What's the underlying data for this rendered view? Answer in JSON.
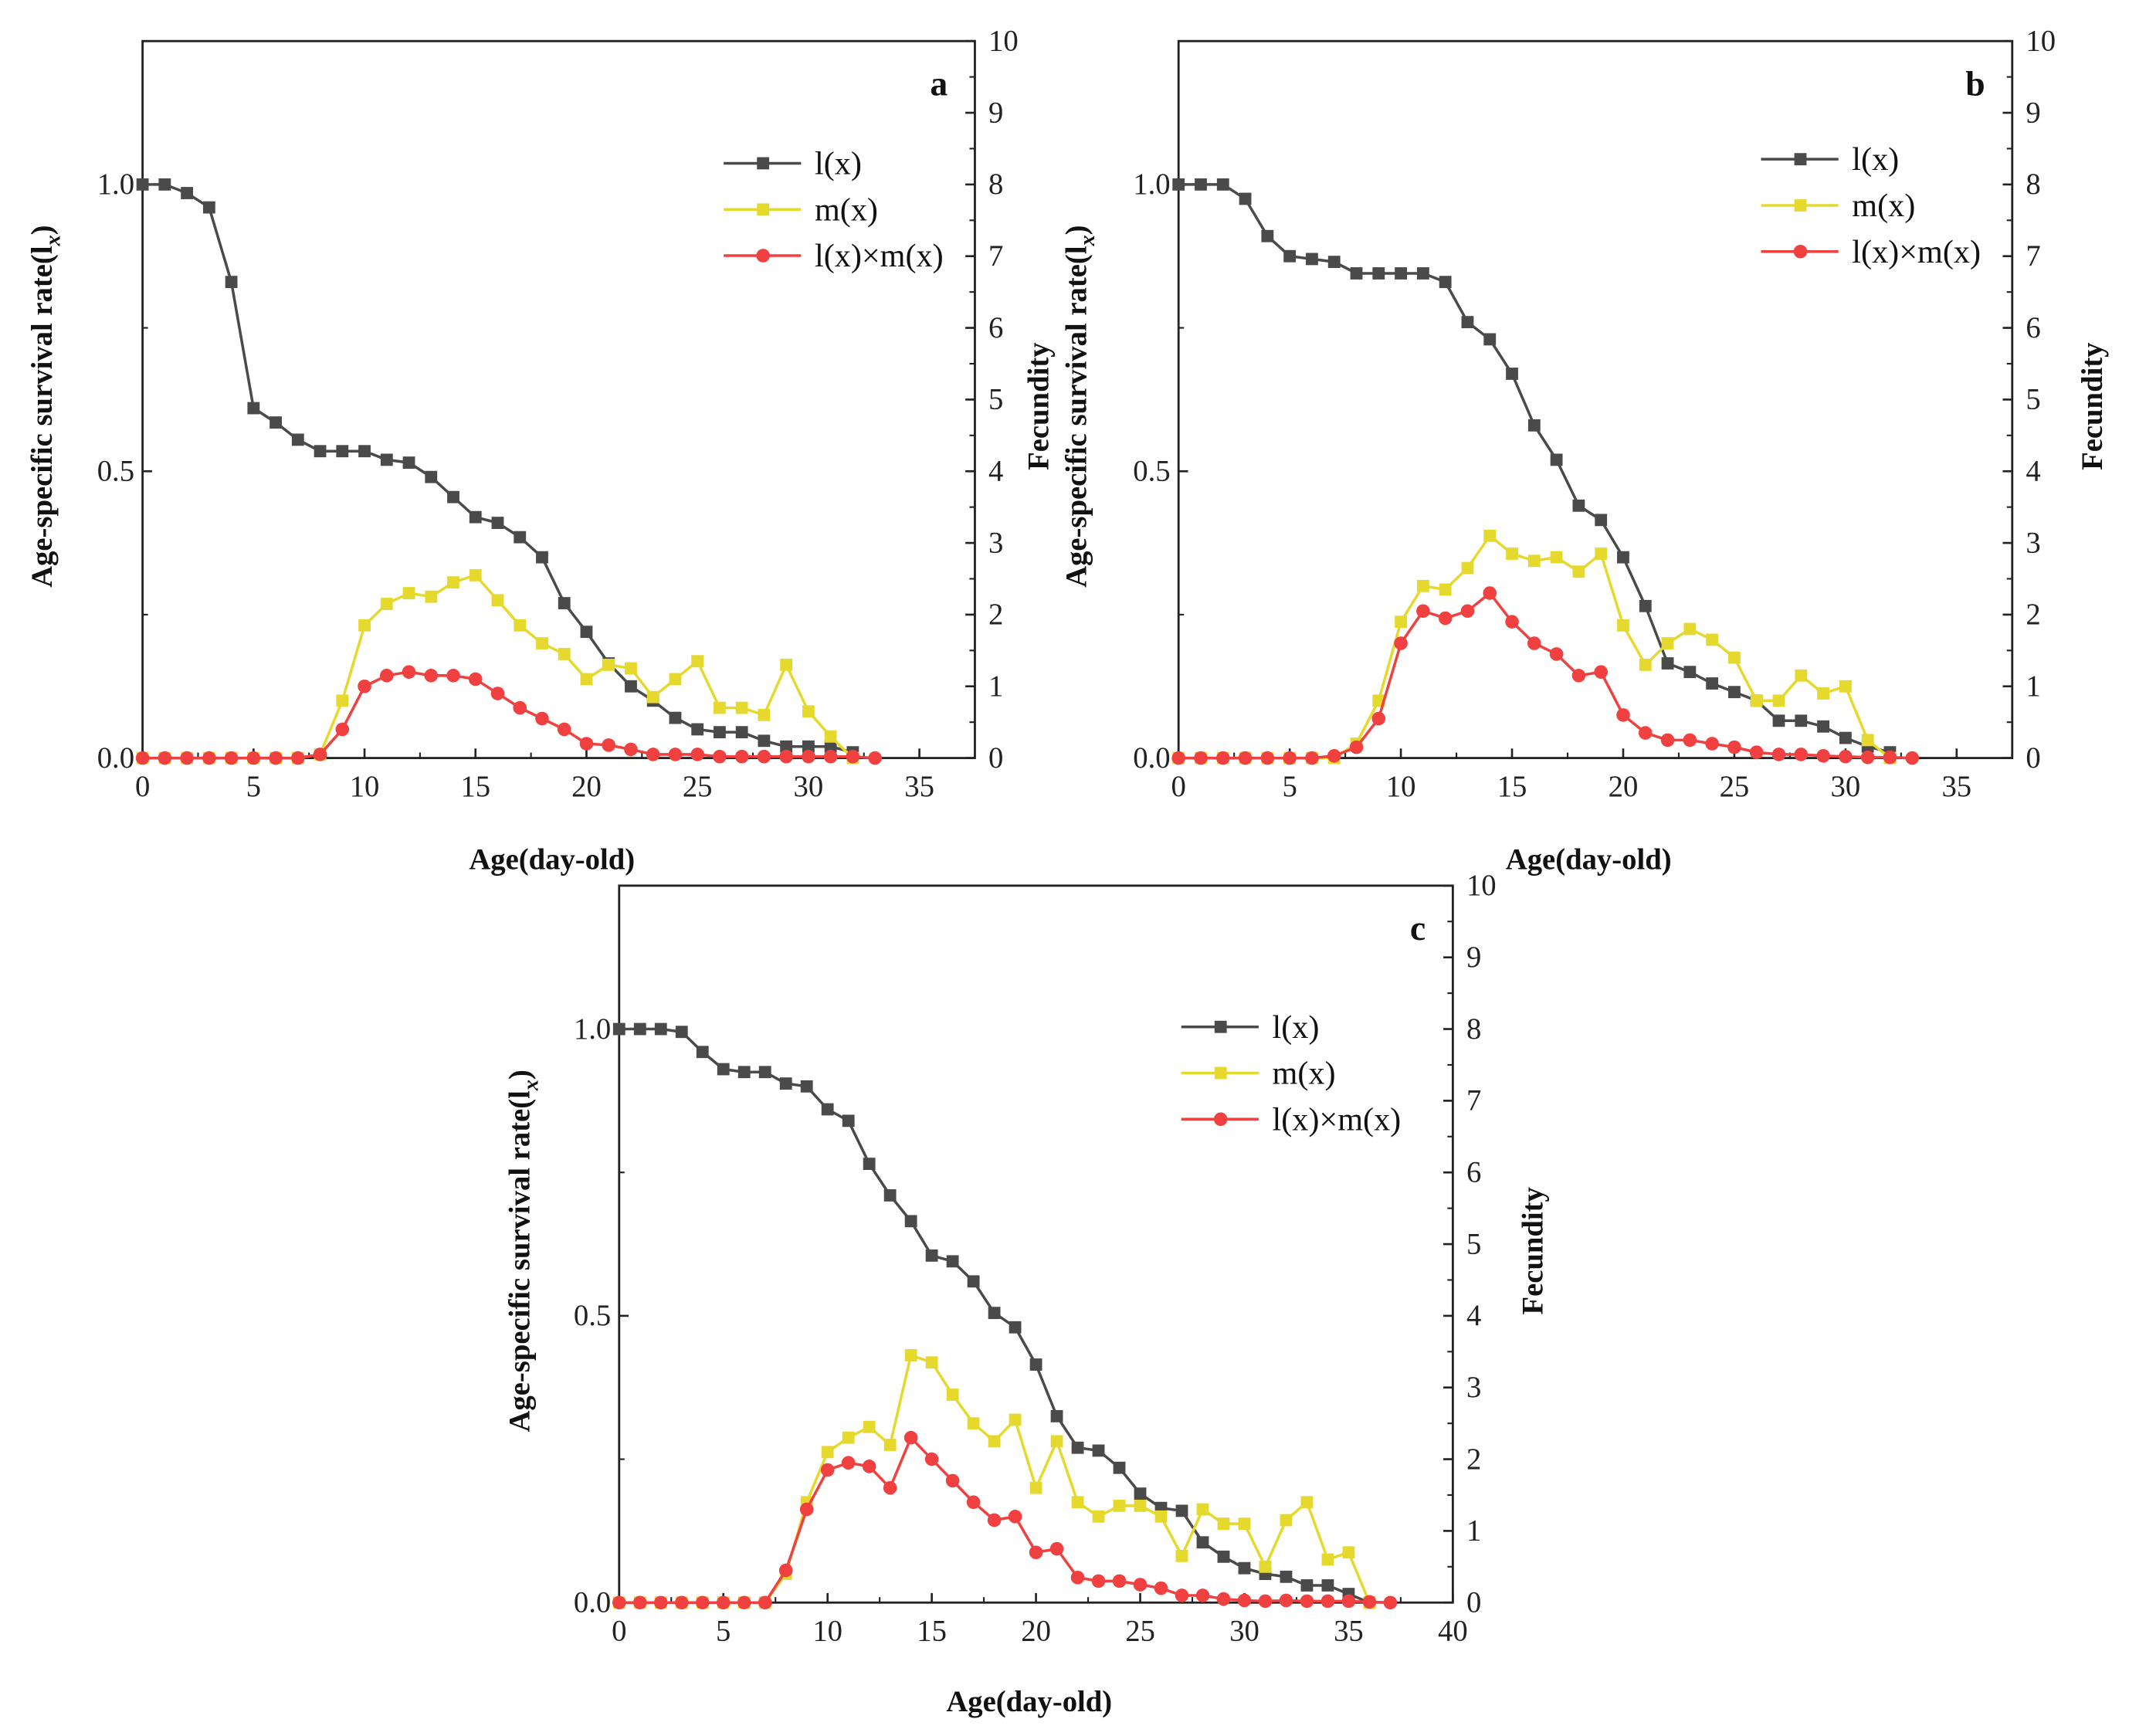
{
  "chart_data": [
    {
      "type": "line",
      "panel_label": "a",
      "xlabel": "Age(day-old)",
      "ylabel_left": "Age-specific survival rate(l",
      "ylabel_left_sub": "x",
      "ylabel_left_close": ")",
      "ylabel_right": "Fecundity",
      "xlim": [
        0,
        37.5
      ],
      "xticks": [
        0,
        5,
        10,
        15,
        20,
        25,
        30,
        35
      ],
      "ylim_left": [
        0,
        1.25
      ],
      "yticks_left": [
        "0.0",
        "0.5",
        "1.0"
      ],
      "ylim_right": [
        0,
        10
      ],
      "yticks_right": [
        0,
        1,
        2,
        3,
        4,
        5,
        6,
        7,
        8,
        9,
        10
      ],
      "legend": [
        "l(x)",
        "m(x)",
        "l(x)×m(x)"
      ],
      "legend_position": "top-right",
      "series": [
        {
          "name": "l(x)",
          "axis": "left",
          "color": "#4a4a4a",
          "marker": "square",
          "x": [
            0,
            1,
            2,
            3,
            4,
            5,
            6,
            7,
            8,
            9,
            10,
            11,
            12,
            13,
            14,
            15,
            16,
            17,
            18,
            19,
            20,
            21,
            22,
            23,
            24,
            25,
            26,
            27,
            28,
            29,
            30,
            31,
            32
          ],
          "values": [
            1.0,
            1.0,
            0.985,
            0.96,
            0.83,
            0.61,
            0.585,
            0.555,
            0.535,
            0.535,
            0.535,
            0.52,
            0.515,
            0.49,
            0.455,
            0.42,
            0.41,
            0.385,
            0.35,
            0.27,
            0.22,
            0.165,
            0.125,
            0.1,
            0.07,
            0.05,
            0.045,
            0.045,
            0.03,
            0.02,
            0.02,
            0.02,
            0.01
          ]
        },
        {
          "name": "m(x)",
          "axis": "right",
          "color": "#e6d92e",
          "marker": "square",
          "x": [
            0,
            1,
            2,
            3,
            4,
            5,
            6,
            7,
            8,
            9,
            10,
            11,
            12,
            13,
            14,
            15,
            16,
            17,
            18,
            19,
            20,
            21,
            22,
            23,
            24,
            25,
            26,
            27,
            28,
            29,
            30,
            31,
            32
          ],
          "values": [
            0,
            0,
            0,
            0,
            0,
            0,
            0,
            0,
            0.05,
            0.8,
            1.85,
            2.15,
            2.3,
            2.25,
            2.45,
            2.55,
            2.2,
            1.85,
            1.6,
            1.45,
            1.1,
            1.3,
            1.25,
            0.85,
            1.1,
            1.35,
            0.7,
            0.7,
            0.6,
            1.3,
            0.65,
            0.3,
            0
          ]
        },
        {
          "name": "l(x)×m(x)",
          "axis": "right",
          "color": "#f04040",
          "marker": "circle",
          "x": [
            0,
            1,
            2,
            3,
            4,
            5,
            6,
            7,
            8,
            9,
            10,
            11,
            12,
            13,
            14,
            15,
            16,
            17,
            18,
            19,
            20,
            21,
            22,
            23,
            24,
            25,
            26,
            27,
            28,
            29,
            30,
            31,
            32,
            33
          ],
          "values": [
            0,
            0,
            0,
            0,
            0,
            0,
            0,
            0,
            0.05,
            0.4,
            1.0,
            1.15,
            1.2,
            1.15,
            1.15,
            1.1,
            0.9,
            0.7,
            0.55,
            0.4,
            0.2,
            0.18,
            0.12,
            0.05,
            0.05,
            0.05,
            0.02,
            0.02,
            0.02,
            0.02,
            0.02,
            0.02,
            0.02,
            0
          ]
        }
      ]
    },
    {
      "type": "line",
      "panel_label": "b",
      "xlabel": "Age(day-old)",
      "ylabel_left": "Age-specific survival rate(l",
      "ylabel_left_sub": "x",
      "ylabel_left_close": ")",
      "ylabel_right": "Fecundity",
      "xlim": [
        0,
        37.5
      ],
      "xticks": [
        0,
        5,
        10,
        15,
        20,
        25,
        30,
        35
      ],
      "ylim_left": [
        0,
        1.25
      ],
      "yticks_left": [
        "0.0",
        "0.5",
        "1.0"
      ],
      "ylim_right": [
        0,
        10
      ],
      "yticks_right": [
        0,
        1,
        2,
        3,
        4,
        5,
        6,
        7,
        8,
        9,
        10
      ],
      "legend": [
        "l(x)",
        "m(x)",
        "l(x)×m(x)"
      ],
      "legend_position": "top-right",
      "series": [
        {
          "name": "l(x)",
          "axis": "left",
          "color": "#4a4a4a",
          "marker": "square",
          "x": [
            0,
            1,
            2,
            3,
            4,
            5,
            6,
            7,
            8,
            9,
            10,
            11,
            12,
            13,
            14,
            15,
            16,
            17,
            18,
            19,
            20,
            21,
            22,
            23,
            24,
            25,
            26,
            27,
            28,
            29,
            30,
            31,
            32
          ],
          "values": [
            1.0,
            1.0,
            1.0,
            0.975,
            0.91,
            0.875,
            0.87,
            0.865,
            0.845,
            0.845,
            0.845,
            0.845,
            0.83,
            0.76,
            0.73,
            0.67,
            0.58,
            0.52,
            0.44,
            0.415,
            0.35,
            0.265,
            0.165,
            0.15,
            0.13,
            0.115,
            0.1,
            0.065,
            0.065,
            0.055,
            0.035,
            0.02,
            0.01
          ]
        },
        {
          "name": "m(x)",
          "axis": "right",
          "color": "#e6d92e",
          "marker": "square",
          "x": [
            0,
            1,
            2,
            3,
            4,
            5,
            6,
            7,
            8,
            9,
            10,
            11,
            12,
            13,
            14,
            15,
            16,
            17,
            18,
            19,
            20,
            21,
            22,
            23,
            24,
            25,
            26,
            27,
            28,
            29,
            30,
            31,
            32
          ],
          "values": [
            0,
            0,
            0,
            0,
            0,
            0,
            0,
            0,
            0.2,
            0.8,
            1.9,
            2.4,
            2.35,
            2.65,
            3.1,
            2.85,
            2.75,
            2.8,
            2.6,
            2.85,
            1.85,
            1.3,
            1.6,
            1.8,
            1.65,
            1.4,
            0.8,
            0.8,
            1.15,
            0.9,
            1.0,
            0.25,
            0
          ]
        },
        {
          "name": "l(x)×m(x)",
          "axis": "right",
          "color": "#f04040",
          "marker": "circle",
          "x": [
            0,
            1,
            2,
            3,
            4,
            5,
            6,
            7,
            8,
            9,
            10,
            11,
            12,
            13,
            14,
            15,
            16,
            17,
            18,
            19,
            20,
            21,
            22,
            23,
            24,
            25,
            26,
            27,
            28,
            29,
            30,
            31,
            32,
            33
          ],
          "values": [
            0,
            0,
            0,
            0,
            0,
            0,
            0,
            0.03,
            0.15,
            0.55,
            1.6,
            2.05,
            1.95,
            2.05,
            2.3,
            1.9,
            1.6,
            1.45,
            1.15,
            1.2,
            0.6,
            0.35,
            0.25,
            0.25,
            0.2,
            0.15,
            0.08,
            0.05,
            0.05,
            0.03,
            0.02,
            0.01,
            0.01,
            0
          ]
        }
      ]
    },
    {
      "type": "line",
      "panel_label": "c",
      "xlabel": "Age(day-old)",
      "ylabel_left": "Age-specific survival rate(l",
      "ylabel_left_sub": "x",
      "ylabel_left_close": ")",
      "ylabel_right": "Fecundity",
      "xlim": [
        0,
        40
      ],
      "xticks": [
        0,
        5,
        10,
        15,
        20,
        25,
        30,
        35,
        40
      ],
      "ylim_left": [
        0,
        1.25
      ],
      "yticks_left": [
        "0.0",
        "0.5",
        "1.0"
      ],
      "ylim_right": [
        0,
        10
      ],
      "yticks_right": [
        0,
        1,
        2,
        3,
        4,
        5,
        6,
        7,
        8,
        9,
        10
      ],
      "legend": [
        "l(x)",
        "m(x)",
        "l(x)×m(x)"
      ],
      "legend_position": "top-right",
      "series": [
        {
          "name": "l(x)",
          "axis": "left",
          "color": "#4a4a4a",
          "marker": "square",
          "x": [
            0,
            1,
            2,
            3,
            4,
            5,
            6,
            7,
            8,
            9,
            10,
            11,
            12,
            13,
            14,
            15,
            16,
            17,
            18,
            19,
            20,
            21,
            22,
            23,
            24,
            25,
            26,
            27,
            28,
            29,
            30,
            31,
            32,
            33,
            34,
            35,
            36
          ],
          "values": [
            1.0,
            1.0,
            1.0,
            0.995,
            0.96,
            0.93,
            0.925,
            0.925,
            0.905,
            0.9,
            0.86,
            0.84,
            0.765,
            0.71,
            0.665,
            0.605,
            0.595,
            0.56,
            0.505,
            0.48,
            0.415,
            0.325,
            0.27,
            0.265,
            0.235,
            0.19,
            0.165,
            0.16,
            0.105,
            0.08,
            0.06,
            0.05,
            0.045,
            0.03,
            0.03,
            0.015,
            0
          ]
        },
        {
          "name": "m(x)",
          "axis": "right",
          "color": "#e6d92e",
          "marker": "square",
          "x": [
            0,
            1,
            2,
            3,
            4,
            5,
            6,
            7,
            8,
            9,
            10,
            11,
            12,
            13,
            14,
            15,
            16,
            17,
            18,
            19,
            20,
            21,
            22,
            23,
            24,
            25,
            26,
            27,
            28,
            29,
            30,
            31,
            32,
            33,
            34,
            35,
            36
          ],
          "values": [
            0,
            0,
            0,
            0,
            0,
            0,
            0,
            0,
            0.4,
            1.4,
            2.1,
            2.3,
            2.45,
            2.2,
            3.45,
            3.35,
            2.9,
            2.5,
            2.25,
            2.55,
            1.6,
            2.25,
            1.4,
            1.2,
            1.35,
            1.35,
            1.2,
            0.65,
            1.3,
            1.1,
            1.1,
            0.5,
            1.15,
            1.4,
            0.6,
            0.7,
            0
          ]
        },
        {
          "name": "l(x)×m(x)",
          "axis": "right",
          "color": "#f04040",
          "marker": "circle",
          "x": [
            0,
            1,
            2,
            3,
            4,
            5,
            6,
            7,
            8,
            9,
            10,
            11,
            12,
            13,
            14,
            15,
            16,
            17,
            18,
            19,
            20,
            21,
            22,
            23,
            24,
            25,
            26,
            27,
            28,
            29,
            30,
            31,
            32,
            33,
            34,
            35,
            36,
            37
          ],
          "values": [
            0,
            0,
            0,
            0,
            0,
            0,
            0,
            0,
            0.45,
            1.3,
            1.85,
            1.95,
            1.9,
            1.6,
            2.3,
            2.0,
            1.7,
            1.4,
            1.15,
            1.2,
            0.7,
            0.75,
            0.35,
            0.3,
            0.3,
            0.25,
            0.2,
            0.1,
            0.1,
            0.05,
            0.03,
            0.02,
            0.03,
            0.02,
            0.02,
            0.02,
            0.01,
            0
          ]
        }
      ]
    }
  ]
}
